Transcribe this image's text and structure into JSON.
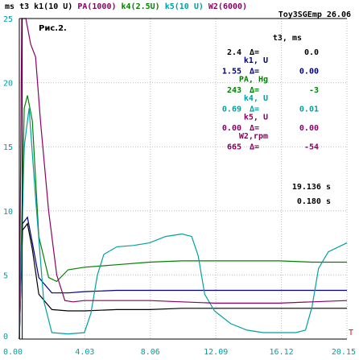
{
  "header": {
    "line1": [
      {
        "text": "ms",
        "color": "#000000"
      },
      {
        "text": "t3",
        "color": "#000000"
      },
      {
        "text": "k1(10 U)",
        "color": "#000000"
      },
      {
        "text": "PA(1000)",
        "color": "#8b0066"
      },
      {
        "text": "k4(2.5U)",
        "color": "#008000"
      },
      {
        "text": "k5(10 U)",
        "color": "#00a0a0"
      },
      {
        "text": "W2(6000)",
        "color": "#8b0066"
      }
    ],
    "line2": "Toy3SGEmp 26.06"
  },
  "figure_label": "Рис.2.",
  "readout": {
    "t3_label": "t3, ms",
    "rows": [
      {
        "value": "2.4",
        "delta_label": "Δ=",
        "delta": "0.0",
        "unit": "k1, U",
        "color": "#000000"
      },
      {
        "value": "1.55",
        "delta_label": "Δ=",
        "delta": "0.00",
        "unit": "PA, Hg",
        "color": "#000080"
      },
      {
        "value": "243",
        "delta_label": "Δ=",
        "delta": "-3",
        "unit": "k4, U",
        "color": "#008000"
      },
      {
        "value": "0.69",
        "delta_label": "Δ=",
        "delta": "0.01",
        "unit": "k5, U",
        "color": "#00a0a0"
      },
      {
        "value": "0.00",
        "delta_label": "Δ=",
        "delta": "0.00",
        "unit": "W2,rpm",
        "color": "#8b0066"
      },
      {
        "value": "665",
        "delta_label": "Δ=",
        "delta": "-54",
        "unit": "",
        "color": "#8b0066"
      }
    ],
    "time1": "19.136 s",
    "time2": "0.180 s"
  },
  "chart_data": {
    "type": "line",
    "xlabel": "T",
    "ylabel": "",
    "xlim": [
      0,
      20.15
    ],
    "ylim": [
      0,
      25
    ],
    "x_ticks": [
      "0.00",
      "4.03",
      "8.06",
      "12.09",
      "16.12",
      "20.15"
    ],
    "y_ticks": [
      "0",
      "5",
      "10",
      "15",
      "20",
      "25"
    ],
    "grid": true,
    "cursor_x": 0.18,
    "series": [
      {
        "color": "#000000",
        "points": [
          [
            0,
            0
          ],
          [
            0.2,
            8.5
          ],
          [
            0.5,
            9
          ],
          [
            0.8,
            7
          ],
          [
            1.2,
            3.5
          ],
          [
            2,
            2.3
          ],
          [
            3,
            2.2
          ],
          [
            4,
            2.2
          ],
          [
            6,
            2.3
          ],
          [
            8,
            2.3
          ],
          [
            10,
            2.4
          ],
          [
            12,
            2.4
          ],
          [
            14,
            2.4
          ],
          [
            16,
            2.4
          ],
          [
            18,
            2.4
          ],
          [
            20.15,
            2.4
          ]
        ]
      },
      {
        "color": "#000080",
        "points": [
          [
            0,
            0
          ],
          [
            0.2,
            9
          ],
          [
            0.5,
            9.5
          ],
          [
            0.8,
            7.5
          ],
          [
            1.2,
            4.8
          ],
          [
            2,
            3.6
          ],
          [
            3,
            3.6
          ],
          [
            4,
            3.7
          ],
          [
            6,
            3.8
          ],
          [
            8,
            3.8
          ],
          [
            10,
            3.8
          ],
          [
            12,
            3.8
          ],
          [
            14,
            3.8
          ],
          [
            16,
            3.8
          ],
          [
            18,
            3.8
          ],
          [
            20.15,
            3.8
          ]
        ]
      },
      {
        "color": "#008000",
        "points": [
          [
            0,
            0
          ],
          [
            0.3,
            18
          ],
          [
            0.5,
            19
          ],
          [
            0.8,
            17
          ],
          [
            1.2,
            8
          ],
          [
            1.8,
            4.8
          ],
          [
            2.3,
            4.5
          ],
          [
            3,
            5.4
          ],
          [
            4,
            5.6
          ],
          [
            6,
            5.8
          ],
          [
            8,
            6
          ],
          [
            10,
            6.1
          ],
          [
            12,
            6.1
          ],
          [
            14,
            6.1
          ],
          [
            16,
            6.1
          ],
          [
            18,
            6
          ],
          [
            20.15,
            6
          ]
        ]
      },
      {
        "color": "#00a0a0",
        "points": [
          [
            0,
            0
          ],
          [
            0.3,
            15
          ],
          [
            0.6,
            18
          ],
          [
            1,
            11
          ],
          [
            1.5,
            3
          ],
          [
            2,
            0.5
          ],
          [
            3,
            0.4
          ],
          [
            4,
            0.5
          ],
          [
            4.4,
            2
          ],
          [
            4.8,
            5
          ],
          [
            5.2,
            6.6
          ],
          [
            6,
            7.2
          ],
          [
            7,
            7.3
          ],
          [
            8,
            7.5
          ],
          [
            9,
            8
          ],
          [
            10,
            8.2
          ],
          [
            10.6,
            8
          ],
          [
            11,
            6.5
          ],
          [
            11.4,
            3.5
          ],
          [
            12,
            2.2
          ],
          [
            13,
            1.2
          ],
          [
            14,
            0.7
          ],
          [
            15,
            0.5
          ],
          [
            16,
            0.5
          ],
          [
            17,
            0.5
          ],
          [
            17.6,
            0.7
          ],
          [
            18,
            2.5
          ],
          [
            18.4,
            5.5
          ],
          [
            19,
            6.8
          ],
          [
            20.15,
            7.5
          ]
        ]
      },
      {
        "color": "#8b0066",
        "points": [
          [
            0,
            0
          ],
          [
            0.15,
            25
          ],
          [
            0.4,
            25
          ],
          [
            0.7,
            23
          ],
          [
            1,
            22
          ],
          [
            1.3,
            17
          ],
          [
            1.8,
            10
          ],
          [
            2.3,
            5
          ],
          [
            2.8,
            3
          ],
          [
            3.3,
            2.9
          ],
          [
            4,
            3
          ],
          [
            6,
            3
          ],
          [
            8,
            3
          ],
          [
            10,
            2.9
          ],
          [
            12,
            2.8
          ],
          [
            14,
            2.8
          ],
          [
            16,
            2.8
          ],
          [
            18,
            2.9
          ],
          [
            20.15,
            3
          ]
        ]
      }
    ]
  }
}
